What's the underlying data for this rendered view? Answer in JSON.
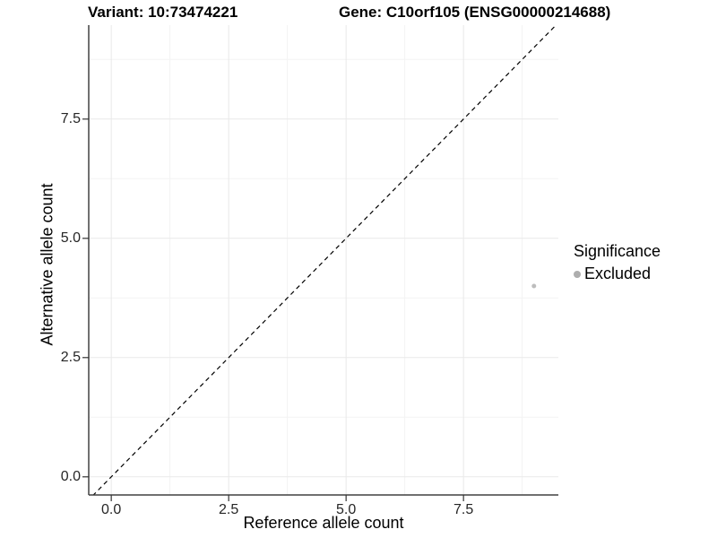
{
  "header": {
    "variant_title": "Variant: 10:73474221",
    "gene_title": "Gene: C10orf105 (ENSG00000214688)"
  },
  "chart_data": {
    "type": "scatter",
    "title": "Variant: 10:73474221",
    "subtitle": "Gene: C10orf105 (ENSG00000214688)",
    "xlabel": "Reference allele count",
    "ylabel": "Alternative allele count",
    "x_ticks": [
      {
        "value": 0,
        "label": "0.0"
      },
      {
        "value": 2.5,
        "label": "2.5"
      },
      {
        "value": 5,
        "label": "5.0"
      },
      {
        "value": 7.5,
        "label": "7.5"
      }
    ],
    "y_ticks": [
      {
        "value": 0,
        "label": "0.0"
      },
      {
        "value": 2.5,
        "label": "2.5"
      },
      {
        "value": 5,
        "label": "5.0"
      },
      {
        "value": 7.5,
        "label": "7.5"
      }
    ],
    "minor_ticks": [
      1.25,
      3.75,
      6.25,
      8.75
    ],
    "xlim": [
      -0.48,
      9.52
    ],
    "ylim": [
      -0.38,
      9.47
    ],
    "grid": "major+minor, faint grey on white",
    "reference_line": {
      "kind": "identity y=x",
      "style": "dashed",
      "color": "#000000"
    },
    "series": [
      {
        "name": "Excluded",
        "color": "#bdbdbd",
        "points": [
          {
            "x": 9,
            "y": 4
          }
        ]
      }
    ],
    "legend": {
      "title": "Significance",
      "position": "right",
      "entries": [
        {
          "label": "Excluded",
          "color": "#aeaeae"
        }
      ]
    }
  }
}
